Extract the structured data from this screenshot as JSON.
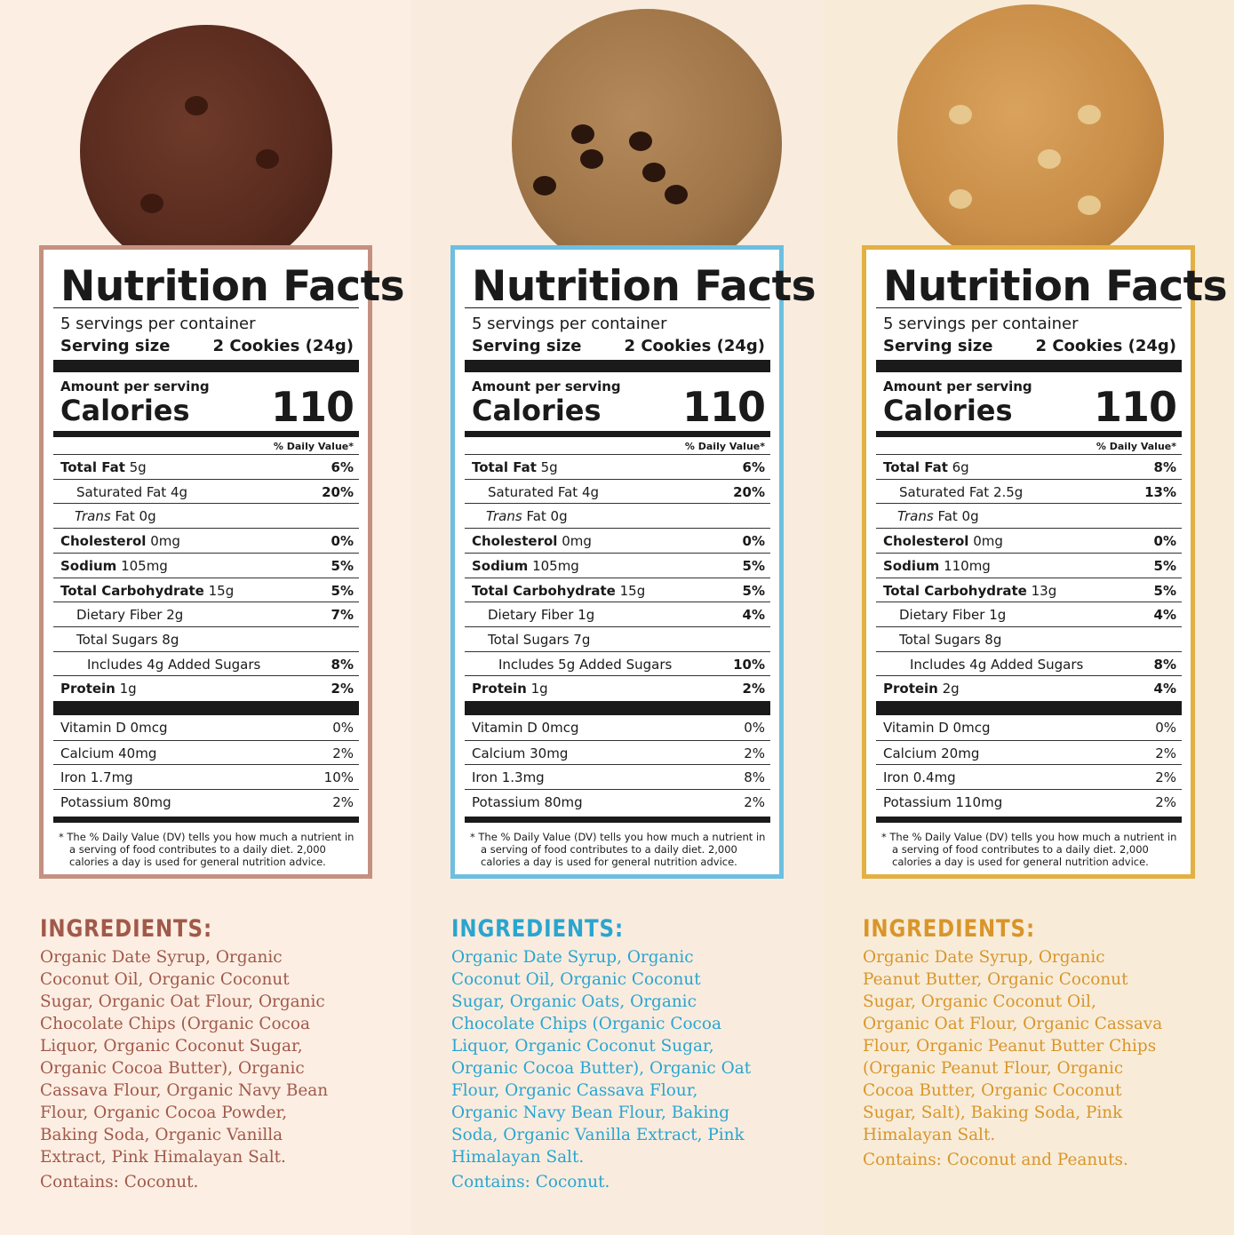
{
  "colors": {
    "brown": "#c49181",
    "blue": "#6dbfdf",
    "gold": "#e3b043"
  },
  "common": {
    "title": "Nutrition Facts",
    "servings": "5 servings per container",
    "serving_size_label": "Serving size",
    "amount_per_serving": "Amount per serving",
    "calories_label": "Calories",
    "daily_value_header": "% Daily Value*",
    "footnote": "* The % Daily Value (DV) tells you how much a nutrient in a serving of food contributes to a daily diet. 2,000 calories a day is used for general nutrition advice.",
    "ingredients_heading": "INGREDIENTS:"
  },
  "products": [
    {
      "name_icon": "double-chocolate-cookie-image",
      "border": "#c49181",
      "text_color": "#a0594a",
      "serving_size": "2 Cookies (24g)",
      "calories": "110",
      "nutrients": [
        {
          "b": "Total Fat",
          "v": " 5g",
          "dv": "6%",
          "indent": 0
        },
        {
          "b": "",
          "v": "Saturated Fat 4g",
          "dv": "20%",
          "indent": 1
        },
        {
          "b": "",
          "i": "Trans",
          "v": " Fat 0g",
          "dv": "",
          "indent": 1
        },
        {
          "b": "Cholesterol",
          "v": " 0mg",
          "dv": "0%",
          "indent": 0
        },
        {
          "b": "Sodium",
          "v": " 105mg",
          "dv": "5%",
          "indent": 0
        },
        {
          "b": "Total Carbohydrate",
          "v": " 15g",
          "dv": "5%",
          "indent": 0
        },
        {
          "b": "",
          "v": "Dietary Fiber 2g",
          "dv": "7%",
          "indent": 1
        },
        {
          "b": "",
          "v": "Total Sugars 8g",
          "dv": "",
          "indent": 1
        },
        {
          "b": "",
          "v": "Includes 4g Added Sugars",
          "dv": "8%",
          "indent": 2
        },
        {
          "b": "Protein",
          "v": " 1g",
          "dv": "2%",
          "indent": 0
        }
      ],
      "vitamins": [
        {
          "n": "Vitamin D 0mcg",
          "dv": "0%"
        },
        {
          "n": "Calcium 40mg",
          "dv": "2%"
        },
        {
          "n": "Iron 1.7mg",
          "dv": "10%"
        },
        {
          "n": "Potassium 80mg",
          "dv": "2%"
        }
      ],
      "ingredients": [
        "Organic Date Syrup, Organic",
        "Coconut Oil, Organic Coconut",
        "Sugar, Organic Oat Flour, Organic",
        "Chocolate Chips (Organic Cocoa",
        "Liquor, Organic Coconut Sugar,",
        "Organic Cocoa Butter), Organic",
        "Cassava Flour, Organic Navy Bean",
        "Flour, Organic Cocoa Powder,",
        "Baking Soda, Organic Vanilla",
        "Extract, Pink Himalayan Salt."
      ],
      "contains": "Contains: Coconut."
    },
    {
      "name_icon": "chocolate-chip-cookie-image",
      "border": "#6dbfdf",
      "text_color": "#2aa5cf",
      "serving_size": "2 Cookies (24g)",
      "calories": "110",
      "nutrients": [
        {
          "b": "Total Fat",
          "v": " 5g",
          "dv": "6%",
          "indent": 0
        },
        {
          "b": "",
          "v": "Saturated Fat 4g",
          "dv": "20%",
          "indent": 1
        },
        {
          "b": "",
          "i": "Trans",
          "v": " Fat 0g",
          "dv": "",
          "indent": 1
        },
        {
          "b": "Cholesterol",
          "v": " 0mg",
          "dv": "0%",
          "indent": 0
        },
        {
          "b": "Sodium",
          "v": " 105mg",
          "dv": "5%",
          "indent": 0
        },
        {
          "b": "Total Carbohydrate",
          "v": " 15g",
          "dv": "5%",
          "indent": 0
        },
        {
          "b": "",
          "v": "Dietary Fiber 1g",
          "dv": "4%",
          "indent": 1
        },
        {
          "b": "",
          "v": "Total Sugars 7g",
          "dv": "",
          "indent": 1
        },
        {
          "b": "",
          "v": "Includes 5g Added Sugars",
          "dv": "10%",
          "indent": 2
        },
        {
          "b": "Protein",
          "v": " 1g",
          "dv": "2%",
          "indent": 0
        }
      ],
      "vitamins": [
        {
          "n": "Vitamin D 0mcg",
          "dv": "0%"
        },
        {
          "n": "Calcium 30mg",
          "dv": "2%"
        },
        {
          "n": "Iron 1.3mg",
          "dv": "8%"
        },
        {
          "n": "Potassium 80mg",
          "dv": "2%"
        }
      ],
      "ingredients": [
        "Organic Date Syrup, Organic",
        "Coconut Oil, Organic Coconut",
        "Sugar, Organic Oats, Organic",
        "Chocolate Chips (Organic Cocoa",
        "Liquor, Organic Coconut Sugar,",
        "Organic Cocoa Butter), Organic Oat",
        "Flour, Organic Cassava Flour,",
        "Organic Navy Bean Flour, Baking",
        "Soda, Organic Vanilla Extract, Pink",
        "Himalayan Salt."
      ],
      "contains": "Contains: Coconut."
    },
    {
      "name_icon": "peanut-butter-cookie-image",
      "border": "#e3b043",
      "text_color": "#d9952a",
      "serving_size": "2 Cookies (24g)",
      "calories": "110",
      "nutrients": [
        {
          "b": "Total Fat",
          "v": " 6g",
          "dv": "8%",
          "indent": 0
        },
        {
          "b": "",
          "v": "Saturated Fat 2.5g",
          "dv": "13%",
          "indent": 1
        },
        {
          "b": "",
          "i": "Trans",
          "v": " Fat 0g",
          "dv": "",
          "indent": 1
        },
        {
          "b": "Cholesterol",
          "v": " 0mg",
          "dv": "0%",
          "indent": 0
        },
        {
          "b": "Sodium",
          "v": " 110mg",
          "dv": "5%",
          "indent": 0
        },
        {
          "b": "Total Carbohydrate",
          "v": " 13g",
          "dv": "5%",
          "indent": 0
        },
        {
          "b": "",
          "v": "Dietary Fiber 1g",
          "dv": "4%",
          "indent": 1
        },
        {
          "b": "",
          "v": "Total Sugars 8g",
          "dv": "",
          "indent": 1
        },
        {
          "b": "",
          "v": "Includes 4g Added Sugars",
          "dv": "8%",
          "indent": 2
        },
        {
          "b": "Protein",
          "v": " 2g",
          "dv": "4%",
          "indent": 0
        }
      ],
      "vitamins": [
        {
          "n": "Vitamin D 0mcg",
          "dv": "0%"
        },
        {
          "n": "Calcium 20mg",
          "dv": "2%"
        },
        {
          "n": "Iron 0.4mg",
          "dv": "2%"
        },
        {
          "n": "Potassium 110mg",
          "dv": "2%"
        }
      ],
      "ingredients": [
        "Organic Date Syrup, Organic",
        "Peanut Butter, Organic Coconut",
        "Sugar, Organic Coconut Oil,",
        "Organic Oat Flour, Organic Cassava",
        "Flour, Organic Peanut Butter Chips",
        "(Organic Peanut Flour, Organic",
        "Cocoa Butter, Organic Coconut",
        "Sugar, Salt), Baking Soda, Pink",
        "Himalayan Salt."
      ],
      "contains": "Contains: Coconut and Peanuts."
    }
  ]
}
